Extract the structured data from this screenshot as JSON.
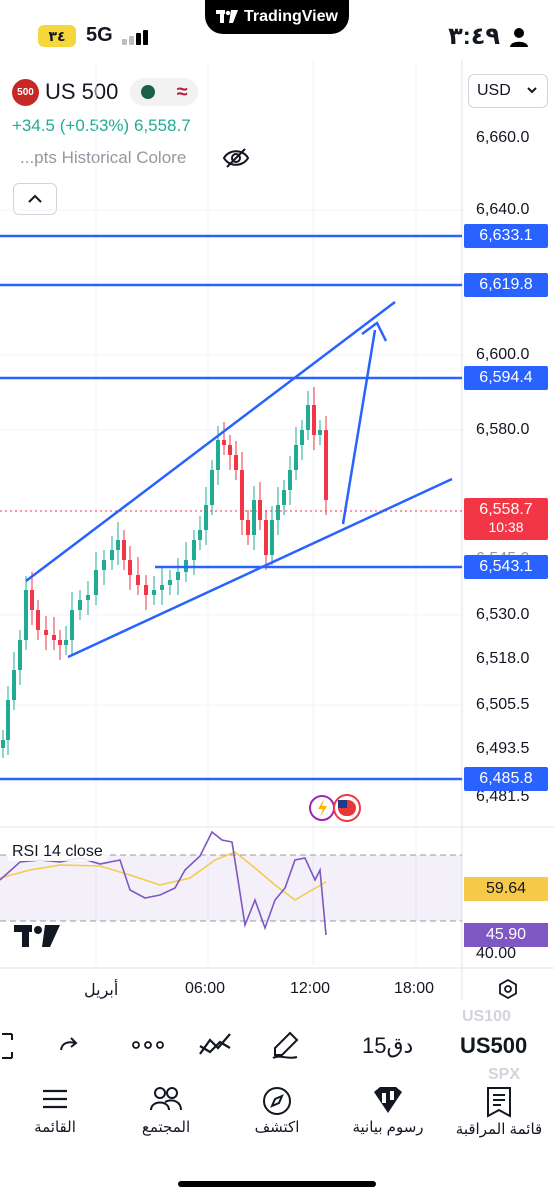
{
  "status_bar": {
    "brand_pill": "TradingView",
    "battery": "٣٤",
    "network": "5G",
    "time": "٣:٤٩"
  },
  "symbol": {
    "badge": "500",
    "name": "US 500",
    "change": "+34.5 (+0.53%)",
    "last_price": "6,558.7",
    "indicator": "...pts Historical Colore",
    "currency": "USD"
  },
  "price_axis": {
    "ticks": [
      "6,660.0",
      "6,640.0",
      "6,600.0",
      "6,580.0",
      "6,545.0",
      "6,530.0",
      "6,518.0",
      "6,505.5",
      "6,493.5",
      "6,481.5",
      "40.00"
    ],
    "line_labels": [
      "6,633.1",
      "6,619.8",
      "6,594.4",
      "6,543.1",
      "6,485.8"
    ],
    "current_price": "6,558.7",
    "countdown": "10:38",
    "rsi_values": [
      "59.64",
      "45.90"
    ]
  },
  "rsi": {
    "label": "RSI 14 close"
  },
  "time_axis": {
    "ticks": [
      "أبريل",
      "06:00",
      "12:00",
      "18:00"
    ]
  },
  "toolbar": {
    "interval": "15دق",
    "symbol": "US500",
    "ghost_top": "US100",
    "ghost_bottom": "SPX"
  },
  "nav": {
    "watchlist": "قائمة المراقبة",
    "charts": "رسوم بيانية",
    "explore": "اكتشف",
    "community": "المجتمع",
    "menu": "القائمة"
  },
  "colors": {
    "up": "#22ab94",
    "down": "#f23645",
    "drawing": "#2962ff",
    "rsi_line": "#7e57c2",
    "rsi_ma": "#f7c948"
  }
}
